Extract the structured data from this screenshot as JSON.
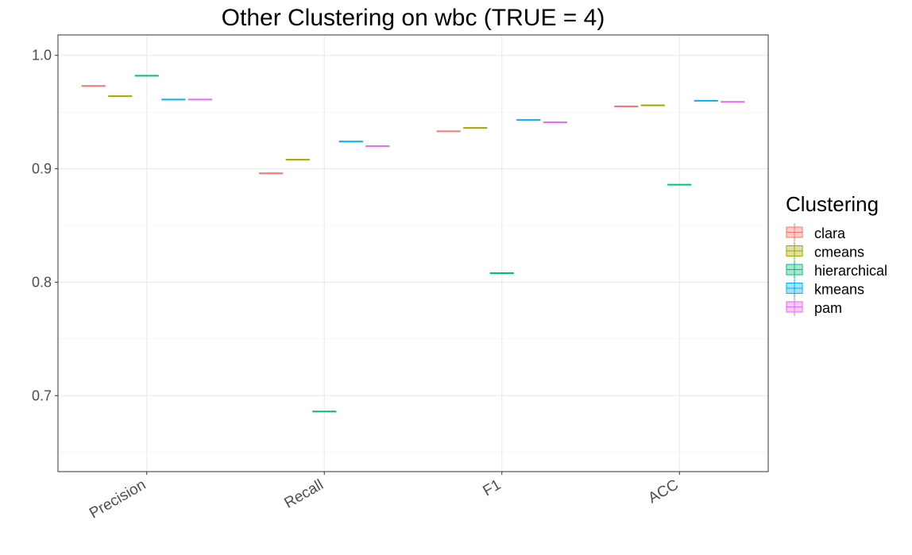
{
  "chart_data": {
    "type": "boxplot",
    "title": "Other Clustering on wbc (TRUE = 4)",
    "xlabel": "",
    "ylabel": "",
    "categories": [
      "Precision",
      "Recall",
      "F1",
      "ACC"
    ],
    "ylim": [
      0.633,
      1.018
    ],
    "yticks": [
      0.7,
      0.8,
      0.9,
      1.0
    ],
    "ytick_labels": [
      "0.7",
      "0.8",
      "0.9",
      "1.0"
    ],
    "grid": true,
    "legend": {
      "title": "Clustering",
      "position": "right"
    },
    "series": [
      {
        "name": "clara",
        "color": "#F8766D",
        "values": [
          0.973,
          0.896,
          0.933,
          0.955
        ]
      },
      {
        "name": "cmeans",
        "color": "#A3A500",
        "values": [
          0.964,
          0.908,
          0.936,
          0.956
        ]
      },
      {
        "name": "hierarchical",
        "color": "#00BF7D",
        "values": [
          0.982,
          0.686,
          0.808,
          0.886
        ]
      },
      {
        "name": "kmeans",
        "color": "#00B0F6",
        "values": [
          0.961,
          0.924,
          0.943,
          0.96
        ]
      },
      {
        "name": "pam",
        "color": "#E76BF3",
        "values": [
          0.961,
          0.92,
          0.941,
          0.959
        ]
      }
    ]
  }
}
